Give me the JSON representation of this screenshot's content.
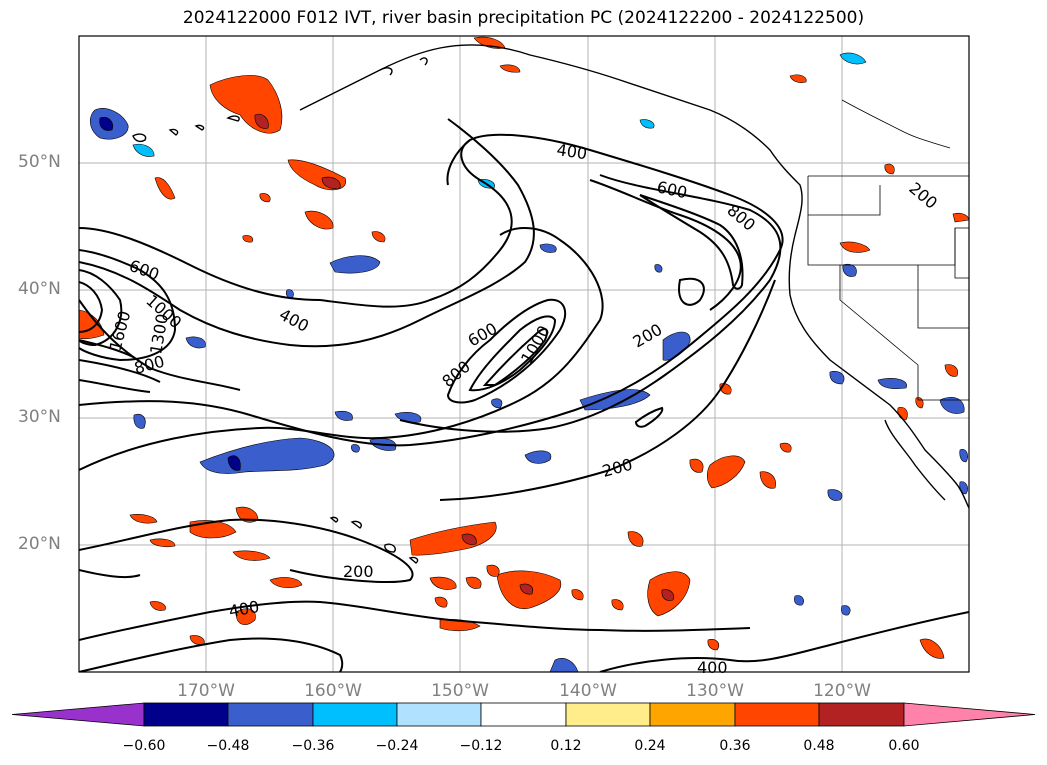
{
  "title": "2024122000 F012 IVT, river basin precipitation PC (2024122200 - 2024122500)",
  "lat_labels": [
    "50°N",
    "40°N",
    "30°N",
    "20°N"
  ],
  "lon_labels": [
    "170°W",
    "160°W",
    "150°W",
    "140°W",
    "130°W",
    "120°W"
  ],
  "contour_labels": [
    "400",
    "600",
    "800",
    "600",
    "1000",
    "1600",
    "1300",
    "800",
    "400",
    "600",
    "800",
    "1000",
    "200",
    "200",
    "200",
    "200",
    "400",
    "400"
  ],
  "colorbar": {
    "ticks": [
      "−0.60",
      "−0.48",
      "−0.36",
      "−0.24",
      "−0.12",
      "0.12",
      "0.24",
      "0.36",
      "0.48",
      "0.60"
    ],
    "colors": [
      "#9932cc",
      "#00008b",
      "#3a5fcd",
      "#00bfff",
      "#b0e2ff",
      "#ffffff",
      "#ffec8b",
      "#ffa500",
      "#ff4500",
      "#b22222",
      "#ff82ab"
    ]
  }
}
